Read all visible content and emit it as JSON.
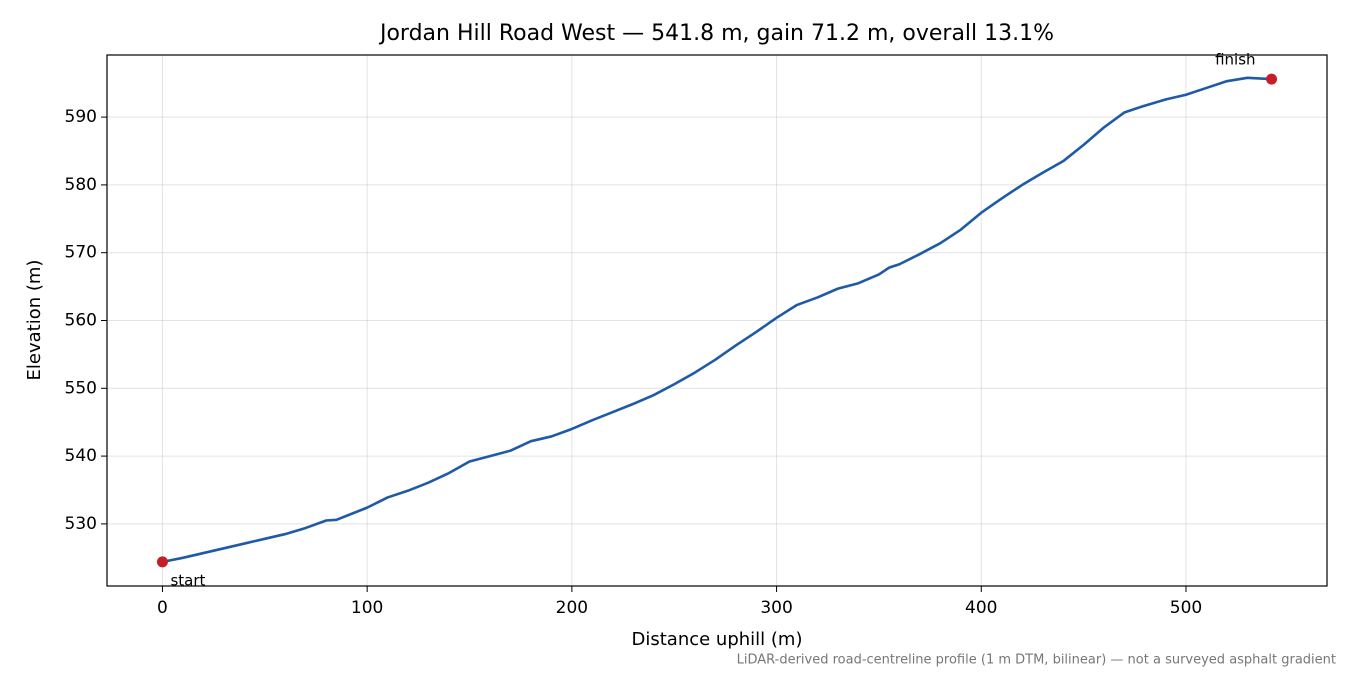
{
  "chart_data": {
    "type": "line",
    "title": "Jordan Hill Road West — 541.8 m, gain 71.2 m, overall 13.1%",
    "x_label": "Distance uphill (m)",
    "y_label": "Elevation (m)",
    "note": "LiDAR-derived road-centreline profile (1 m DTM, bilinear) — not a surveyed asphalt gradient",
    "x": [
      0,
      10,
      20,
      30,
      40,
      50,
      60,
      70,
      80,
      85,
      90,
      100,
      110,
      120,
      130,
      140,
      150,
      160,
      170,
      180,
      190,
      200,
      210,
      220,
      230,
      240,
      250,
      260,
      270,
      280,
      290,
      300,
      310,
      320,
      330,
      340,
      350,
      355,
      360,
      370,
      380,
      390,
      400,
      410,
      420,
      430,
      440,
      450,
      460,
      470,
      480,
      490,
      500,
      510,
      520,
      530,
      541.8
    ],
    "values": [
      524.4,
      525.0,
      525.7,
      526.4,
      527.1,
      527.8,
      528.5,
      529.4,
      530.5,
      530.6,
      531.2,
      532.4,
      533.9,
      534.9,
      536.1,
      537.5,
      539.2,
      540.0,
      540.8,
      542.2,
      542.9,
      544.0,
      545.3,
      546.5,
      547.7,
      549.0,
      550.6,
      552.3,
      554.2,
      556.3,
      558.3,
      560.4,
      562.3,
      563.4,
      564.7,
      565.5,
      566.8,
      567.8,
      568.3,
      569.8,
      571.4,
      573.4,
      575.9,
      578.0,
      580.0,
      581.8,
      583.5,
      585.9,
      588.5,
      590.7,
      591.7,
      592.6,
      593.3,
      594.3,
      595.3,
      595.8,
      595.6
    ],
    "color": "#1f5aa6",
    "markers": [
      {
        "label": "start",
        "x": 0,
        "y": 524.4
      },
      {
        "label": "finish",
        "x": 541.8,
        "y": 595.6
      }
    ],
    "marker_color": "#c41e2a",
    "xlim": [
      -27.09,
      568.89
    ],
    "ylim": [
      520.84,
      599.16
    ],
    "xticks": [
      0,
      100,
      200,
      300,
      400,
      500
    ],
    "yticks": [
      530,
      540,
      550,
      560,
      570,
      580,
      590
    ],
    "grid": true
  }
}
